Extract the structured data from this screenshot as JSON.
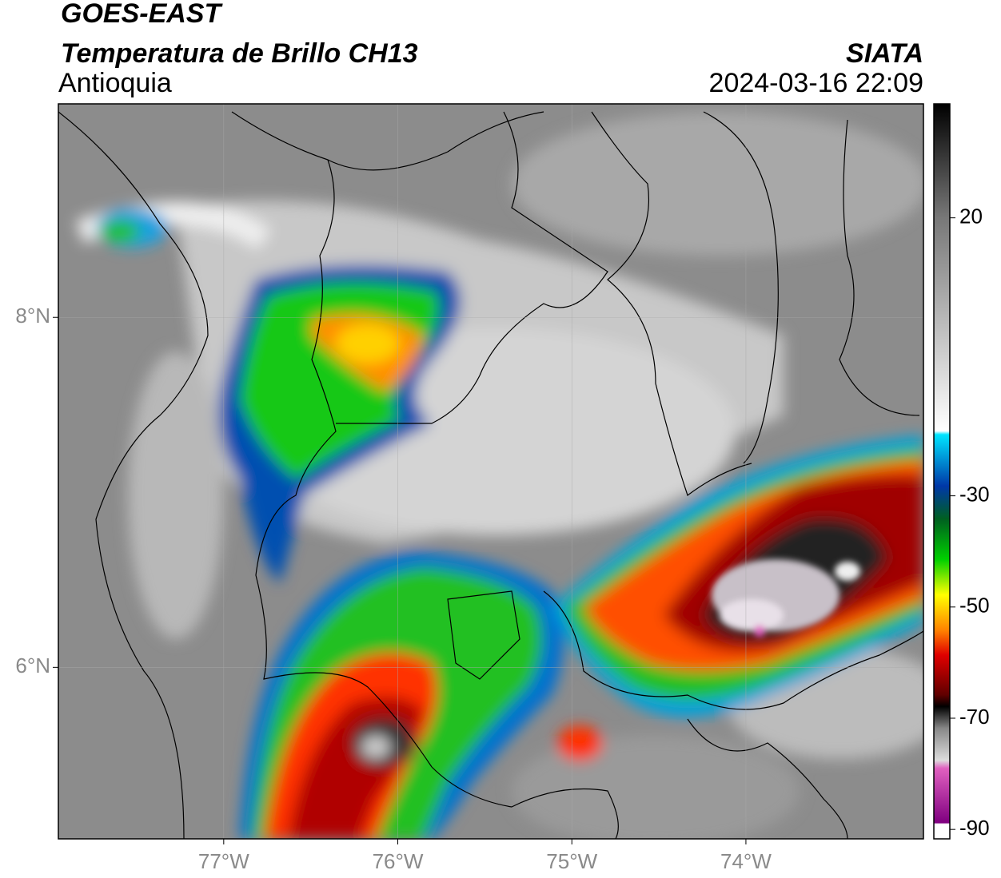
{
  "title": "GOES-EAST",
  "subtitle": "Temperatura de Brillo CH13",
  "region": "Antioquia",
  "source": "SIATA",
  "timestamp": "2024-03-16 22:09",
  "map": {
    "xlim": [
      -77.95,
      -72.98
    ],
    "ylim": [
      5.02,
      9.22
    ],
    "xticks": [
      {
        "value": -77,
        "label": "77°W"
      },
      {
        "value": -76,
        "label": "76°W"
      },
      {
        "value": -75,
        "label": "75°W"
      },
      {
        "value": -74,
        "label": "74°W"
      }
    ],
    "yticks": [
      {
        "value": 6,
        "label": "6°N"
      },
      {
        "value": 8,
        "label": "8°N"
      }
    ],
    "grid": true
  },
  "colorbar": {
    "lim": [
      -91.7,
      40.5
    ],
    "ticks": [
      20,
      -30,
      -50,
      -70,
      -90
    ]
  }
}
